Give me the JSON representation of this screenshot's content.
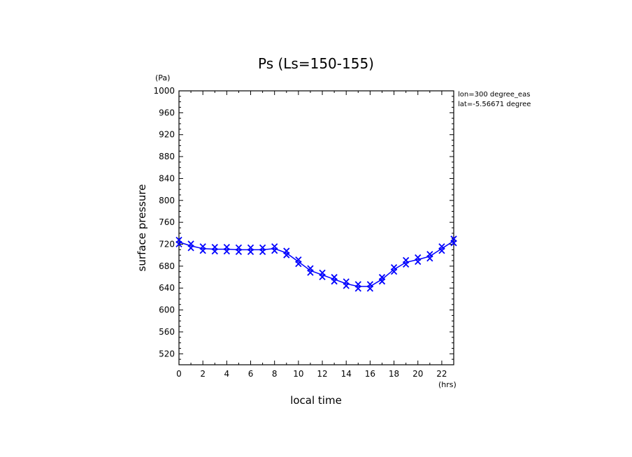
{
  "chart_data": {
    "type": "line",
    "title": "Ps (Ls=150-155)",
    "xlabel": "local time",
    "ylabel": "surface pressure",
    "xunit": "(hrs)",
    "yunit": "(Pa)",
    "xlim": [
      0,
      23
    ],
    "ylim": [
      500,
      1000
    ],
    "xticks": [
      0,
      2,
      4,
      6,
      8,
      10,
      12,
      14,
      16,
      18,
      20,
      22
    ],
    "yticks": [
      520,
      560,
      600,
      640,
      680,
      720,
      760,
      800,
      840,
      880,
      920,
      960,
      1000
    ],
    "annotations": [
      "lon=300 degree_eas",
      "lat=-5.56671 degree"
    ],
    "series": [
      {
        "color": "#0000ff",
        "x": [
          0,
          1,
          2,
          3,
          4,
          5,
          6,
          7,
          8,
          9,
          10,
          11,
          12,
          13,
          14,
          15,
          16,
          17,
          18,
          19,
          20,
          21,
          22,
          23
        ],
        "y": [
          724,
          717,
          712,
          711,
          711,
          710,
          710,
          710,
          712,
          704,
          688,
          672,
          664,
          656,
          648,
          643,
          643,
          656,
          674,
          687,
          692,
          698,
          712,
          726
        ]
      }
    ]
  }
}
